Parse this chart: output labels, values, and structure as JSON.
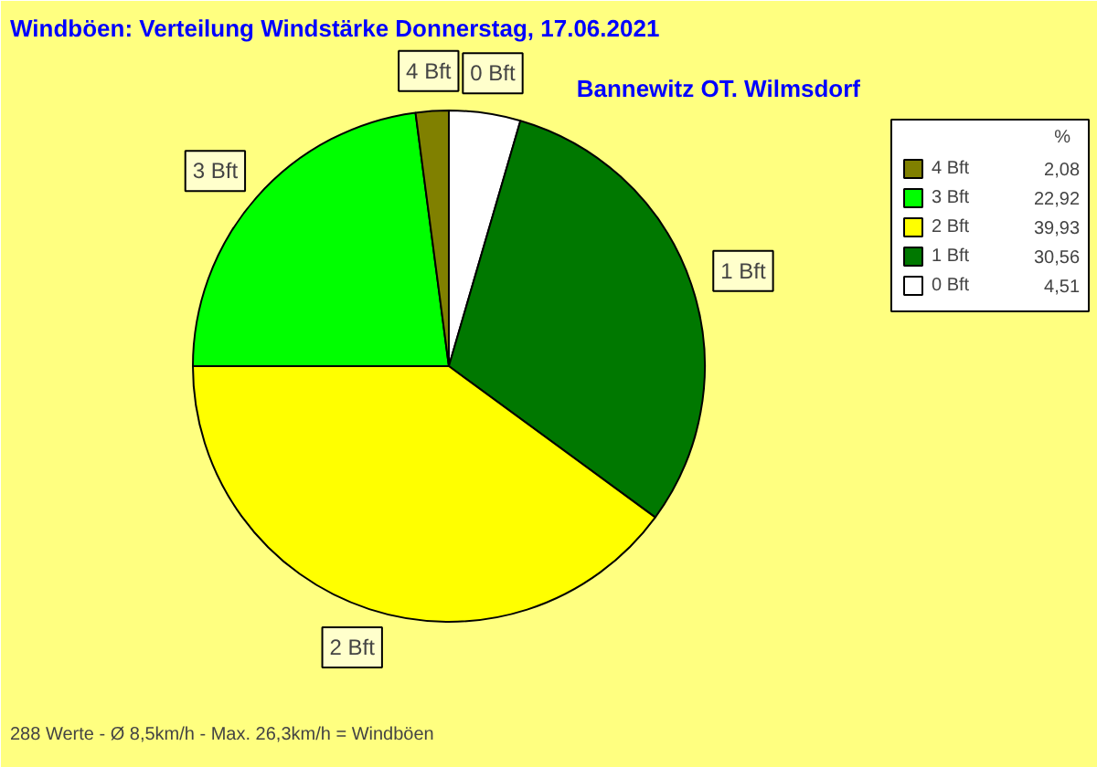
{
  "chart_data": {
    "type": "pie",
    "title": "Windböen: Verteilung Windstärke  Donnerstag, 17.06.2021",
    "subtitle": "Bannewitz OT. Wilmsdorf",
    "categories": [
      "4 Bft",
      "3 Bft",
      "2 Bft",
      "1 Bft",
      "0 Bft"
    ],
    "values": [
      2.08,
      22.92,
      39.93,
      30.56,
      4.51
    ],
    "value_labels": [
      "2,08",
      "22,92",
      "39,93",
      "30,56",
      "4,51"
    ],
    "colors": [
      "#808000",
      "#00ff00",
      "#ffff00",
      "#007800",
      "#ffffff"
    ],
    "legend": "top right",
    "legend_title": "%",
    "annotations": [
      "288 Werte   -   Ø 8,5km/h  -  Max. 26,3km/h = Windböen"
    ]
  }
}
